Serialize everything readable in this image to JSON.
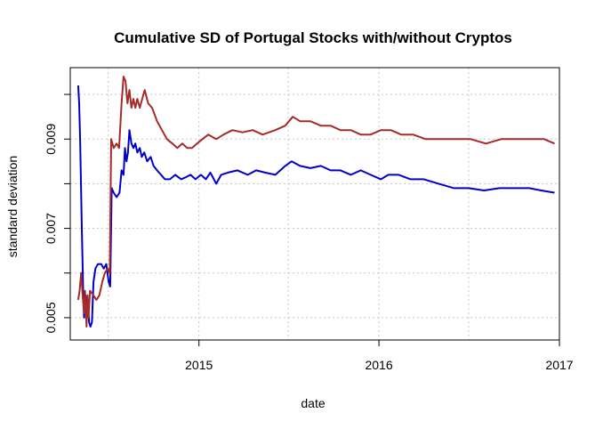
{
  "chart_data": {
    "type": "line",
    "title": "Cumulative SD of Portugal Stocks with/without Cryptos",
    "xlabel": "date",
    "ylabel": "standard deviation",
    "xlim": [
      "2014-04-15",
      "2017-01-01"
    ],
    "ylim": [
      0.0045,
      0.0106
    ],
    "x_ticks": [
      {
        "date": "2015-01-01",
        "label": "2015"
      },
      {
        "date": "2016-01-01",
        "label": "2016"
      },
      {
        "date": "2017-01-01",
        "label": "2017"
      }
    ],
    "y_ticks": [
      {
        "value": 0.005,
        "label": "0.005"
      },
      {
        "value": 0.007,
        "label": "0.007"
      },
      {
        "value": 0.009,
        "label": "0.009"
      }
    ],
    "grid": true,
    "series": [
      {
        "color": "#0000cd",
        "points": [
          [
            "2014-05-01",
            0.0102
          ],
          [
            "2014-05-03",
            0.0098
          ],
          [
            "2014-05-05",
            0.009
          ],
          [
            "2014-05-08",
            0.0072
          ],
          [
            "2014-05-11",
            0.0057
          ],
          [
            "2014-05-13",
            0.005
          ],
          [
            "2014-05-16",
            0.0055
          ],
          [
            "2014-05-18",
            0.0052
          ],
          [
            "2014-05-21",
            0.0054
          ],
          [
            "2014-05-23",
            0.0049
          ],
          [
            "2014-05-26",
            0.0048
          ],
          [
            "2014-05-29",
            0.0049
          ],
          [
            "2014-06-01",
            0.0058
          ],
          [
            "2014-06-05",
            0.0061
          ],
          [
            "2014-06-10",
            0.0062
          ],
          [
            "2014-06-17",
            0.0062
          ],
          [
            "2014-06-22",
            0.0061
          ],
          [
            "2014-06-27",
            0.0062
          ],
          [
            "2014-07-02",
            0.0058
          ],
          [
            "2014-07-05",
            0.0057
          ],
          [
            "2014-07-08",
            0.0079
          ],
          [
            "2014-07-12",
            0.0078
          ],
          [
            "2014-07-18",
            0.0077
          ],
          [
            "2014-07-24",
            0.0078
          ],
          [
            "2014-07-28",
            0.0083
          ],
          [
            "2014-08-01",
            0.0082
          ],
          [
            "2014-08-04",
            0.0088
          ],
          [
            "2014-08-07",
            0.0085
          ],
          [
            "2014-08-10",
            0.0087
          ],
          [
            "2014-08-13",
            0.0092
          ],
          [
            "2014-08-17",
            0.0089
          ],
          [
            "2014-08-21",
            0.0088
          ],
          [
            "2014-08-25",
            0.0089
          ],
          [
            "2014-08-29",
            0.0087
          ],
          [
            "2014-09-03",
            0.0088
          ],
          [
            "2014-09-07",
            0.0086
          ],
          [
            "2014-09-12",
            0.0087
          ],
          [
            "2014-09-18",
            0.0085
          ],
          [
            "2014-09-25",
            0.0086
          ],
          [
            "2014-10-01",
            0.0084
          ],
          [
            "2014-10-08",
            0.0083
          ],
          [
            "2014-10-16",
            0.0082
          ],
          [
            "2014-10-24",
            0.0081
          ],
          [
            "2014-11-03",
            0.0081
          ],
          [
            "2014-11-14",
            0.0082
          ],
          [
            "2014-11-26",
            0.0081
          ],
          [
            "2014-12-06",
            0.00815
          ],
          [
            "2014-12-15",
            0.0082
          ],
          [
            "2014-12-25",
            0.0081
          ],
          [
            "2015-01-05",
            0.0082
          ],
          [
            "2015-01-15",
            0.0081
          ],
          [
            "2015-01-24",
            0.00825
          ],
          [
            "2015-02-05",
            0.008
          ],
          [
            "2015-02-15",
            0.0082
          ],
          [
            "2015-03-01",
            0.00825
          ],
          [
            "2015-03-20",
            0.0083
          ],
          [
            "2015-04-10",
            0.0082
          ],
          [
            "2015-04-27",
            0.0083
          ],
          [
            "2015-05-15",
            0.00825
          ],
          [
            "2015-06-05",
            0.0082
          ],
          [
            "2015-06-25",
            0.0084
          ],
          [
            "2015-07-08",
            0.0085
          ],
          [
            "2015-07-25",
            0.0084
          ],
          [
            "2015-08-15",
            0.00835
          ],
          [
            "2015-09-05",
            0.0084
          ],
          [
            "2015-09-25",
            0.0083
          ],
          [
            "2015-10-15",
            0.0083
          ],
          [
            "2015-11-05",
            0.0082
          ],
          [
            "2015-11-25",
            0.0083
          ],
          [
            "2015-12-15",
            0.0082
          ],
          [
            "2016-01-05",
            0.0081
          ],
          [
            "2016-01-20",
            0.0082
          ],
          [
            "2016-02-10",
            0.0082
          ],
          [
            "2016-03-05",
            0.0081
          ],
          [
            "2016-04-01",
            0.0081
          ],
          [
            "2016-05-01",
            0.008
          ],
          [
            "2016-06-01",
            0.0079
          ],
          [
            "2016-07-01",
            0.0079
          ],
          [
            "2016-08-01",
            0.00785
          ],
          [
            "2016-09-01",
            0.0079
          ],
          [
            "2016-10-01",
            0.0079
          ],
          [
            "2016-11-01",
            0.0079
          ],
          [
            "2016-11-25",
            0.00785
          ],
          [
            "2016-12-22",
            0.0078
          ]
        ]
      },
      {
        "color": "#a52a2a",
        "points": [
          [
            "2014-05-01",
            0.0054
          ],
          [
            "2014-05-04",
            0.0056
          ],
          [
            "2014-05-07",
            0.006
          ],
          [
            "2014-05-10",
            0.0055
          ],
          [
            "2014-05-13",
            0.0051
          ],
          [
            "2014-05-15",
            0.0056
          ],
          [
            "2014-05-18",
            0.0048
          ],
          [
            "2014-05-20",
            0.0055
          ],
          [
            "2014-05-22",
            0.005
          ],
          [
            "2014-05-25",
            0.0056
          ],
          [
            "2014-06-01",
            0.0055
          ],
          [
            "2014-06-07",
            0.0054
          ],
          [
            "2014-06-13",
            0.0055
          ],
          [
            "2014-06-19",
            0.0058
          ],
          [
            "2014-06-24",
            0.006
          ],
          [
            "2014-06-30",
            0.0061
          ],
          [
            "2014-07-04",
            0.006
          ],
          [
            "2014-07-07",
            0.009
          ],
          [
            "2014-07-12",
            0.0088
          ],
          [
            "2014-07-18",
            0.0089
          ],
          [
            "2014-07-23",
            0.0088
          ],
          [
            "2014-07-28",
            0.0098
          ],
          [
            "2014-08-01",
            0.0104
          ],
          [
            "2014-08-05",
            0.0103
          ],
          [
            "2014-08-09",
            0.0098
          ],
          [
            "2014-08-13",
            0.0101
          ],
          [
            "2014-08-17",
            0.0097
          ],
          [
            "2014-08-21",
            0.0099
          ],
          [
            "2014-08-25",
            0.0097
          ],
          [
            "2014-08-29",
            0.0099
          ],
          [
            "2014-09-03",
            0.0097
          ],
          [
            "2014-09-08",
            0.0099
          ],
          [
            "2014-09-13",
            0.0101
          ],
          [
            "2014-09-20",
            0.0098
          ],
          [
            "2014-09-28",
            0.0097
          ],
          [
            "2014-10-08",
            0.0094
          ],
          [
            "2014-10-18",
            0.0092
          ],
          [
            "2014-10-28",
            0.009
          ],
          [
            "2014-11-08",
            0.0089
          ],
          [
            "2014-11-18",
            0.0088
          ],
          [
            "2014-11-28",
            0.0089
          ],
          [
            "2014-12-08",
            0.0088
          ],
          [
            "2014-12-18",
            0.0088
          ],
          [
            "2014-12-28",
            0.0089
          ],
          [
            "2015-01-08",
            0.009
          ],
          [
            "2015-01-20",
            0.0091
          ],
          [
            "2015-02-05",
            0.009
          ],
          [
            "2015-02-20",
            0.0091
          ],
          [
            "2015-03-10",
            0.0092
          ],
          [
            "2015-03-30",
            0.00915
          ],
          [
            "2015-04-20",
            0.0092
          ],
          [
            "2015-05-10",
            0.0091
          ],
          [
            "2015-06-05",
            0.0092
          ],
          [
            "2015-06-25",
            0.0093
          ],
          [
            "2015-07-10",
            0.0095
          ],
          [
            "2015-07-25",
            0.0094
          ],
          [
            "2015-08-15",
            0.0094
          ],
          [
            "2015-09-05",
            0.0093
          ],
          [
            "2015-09-25",
            0.0093
          ],
          [
            "2015-10-15",
            0.0092
          ],
          [
            "2015-11-05",
            0.0092
          ],
          [
            "2015-11-25",
            0.0091
          ],
          [
            "2015-12-15",
            0.0091
          ],
          [
            "2016-01-05",
            0.0092
          ],
          [
            "2016-01-25",
            0.0092
          ],
          [
            "2016-02-15",
            0.0091
          ],
          [
            "2016-03-10",
            0.0091
          ],
          [
            "2016-04-05",
            0.009
          ],
          [
            "2016-05-05",
            0.009
          ],
          [
            "2016-06-05",
            0.009
          ],
          [
            "2016-07-05",
            0.009
          ],
          [
            "2016-08-05",
            0.0089
          ],
          [
            "2016-09-05",
            0.009
          ],
          [
            "2016-10-05",
            0.009
          ],
          [
            "2016-11-05",
            0.009
          ],
          [
            "2016-12-01",
            0.009
          ],
          [
            "2016-12-22",
            0.0089
          ]
        ]
      }
    ]
  }
}
